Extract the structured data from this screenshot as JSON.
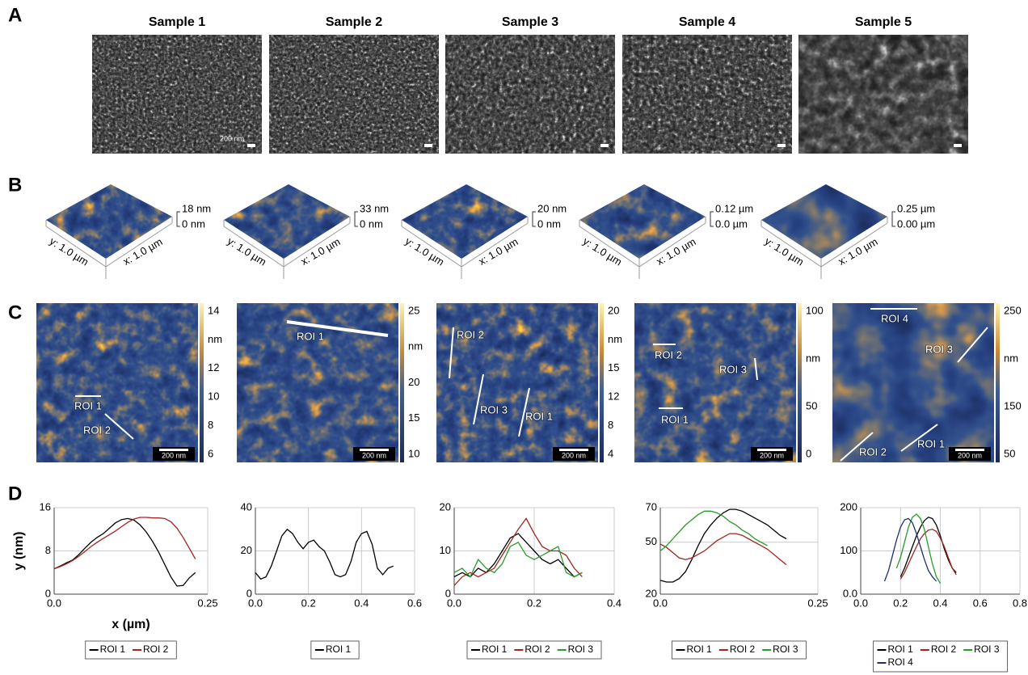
{
  "panel_labels": [
    "A",
    "B",
    "C",
    "D"
  ],
  "samples": [
    "Sample 1",
    "Sample 2",
    "Sample 3",
    "Sample 4",
    "Sample 5"
  ],
  "sem_scale_label": "200 nm",
  "afm_3d": [
    {
      "z_max": "18 nm",
      "z_min": "0 nm",
      "y_extent": "y: 1.0 µm",
      "x_extent": "x: 1.0 µm"
    },
    {
      "z_max": "33 nm",
      "z_min": "0 nm",
      "y_extent": "y: 1.0 µm",
      "x_extent": "x: 1.0 µm"
    },
    {
      "z_max": "20 nm",
      "z_min": "0 nm",
      "y_extent": "y: 1.0 µm",
      "x_extent": "x: 1.0 µm"
    },
    {
      "z_max": "0.12 µm",
      "z_min": "0.0 µm",
      "y_extent": "y: 1.0 µm",
      "x_extent": "x: 1.0 µm"
    },
    {
      "z_max": "0.25 µm",
      "z_min": "0.00 µm",
      "y_extent": "y: 1.0 µm",
      "x_extent": "x: 1.0 µm"
    }
  ],
  "afm_2d": [
    {
      "colorbar_ticks": [
        14,
        12,
        10,
        8,
        6
      ],
      "colorbar_unit": "nm",
      "rois": [
        "ROI 1",
        "ROI 2"
      ],
      "scale_label": "200 nm"
    },
    {
      "colorbar_ticks": [
        25,
        20,
        15,
        10
      ],
      "colorbar_unit": "nm",
      "rois": [
        "ROI 1"
      ],
      "scale_label": "200 nm"
    },
    {
      "colorbar_ticks": [
        20,
        15,
        12,
        8,
        4
      ],
      "colorbar_unit": "nm",
      "rois": [
        "ROI 2",
        "ROI 3",
        "ROI 1"
      ],
      "scale_label": "200 nm"
    },
    {
      "colorbar_ticks": [
        100,
        50,
        0
      ],
      "colorbar_unit": "nm",
      "rois": [
        "ROI 2",
        "ROI 3",
        "ROI 1"
      ],
      "scale_label": "200 nm"
    },
    {
      "colorbar_ticks": [
        250,
        150,
        50
      ],
      "colorbar_unit": "nm",
      "rois": [
        "ROI 4",
        "ROI 3",
        "ROI 2",
        "ROI 1"
      ],
      "scale_label": "200 nm"
    }
  ],
  "chart_data": [
    {
      "type": "line",
      "xlabel": "x (µm)",
      "ylabel": "y (nm)",
      "grid": true,
      "xlim": [
        0,
        0.25
      ],
      "xticks": [
        {
          "value": 0,
          "label": "0.0"
        },
        0.25
      ],
      "ylim": [
        0,
        16
      ],
      "yticks": [
        0,
        8,
        16
      ],
      "series": [
        {
          "name": "ROI 1",
          "color": "#000000",
          "x": [
            0,
            0.01,
            0.02,
            0.03,
            0.04,
            0.05,
            0.06,
            0.07,
            0.08,
            0.09,
            0.1,
            0.11,
            0.12,
            0.13,
            0.14,
            0.15,
            0.16,
            0.17,
            0.18,
            0.19,
            0.2,
            0.21,
            0.22,
            0.23
          ],
          "values": [
            4.7,
            5.2,
            5.8,
            6.3,
            7.3,
            8.5,
            9.6,
            10.5,
            11.2,
            12.2,
            13.2,
            13.8,
            14.0,
            13.7,
            12.8,
            11.5,
            9.8,
            7.8,
            5.5,
            3.2,
            1.5,
            1.6,
            3.0,
            4.0
          ]
        },
        {
          "name": "ROI 2",
          "color": "#a32420",
          "x": [
            0,
            0.01,
            0.02,
            0.03,
            0.04,
            0.05,
            0.06,
            0.07,
            0.08,
            0.09,
            0.1,
            0.11,
            0.12,
            0.13,
            0.14,
            0.15,
            0.16,
            0.17,
            0.18,
            0.19,
            0.2,
            0.21,
            0.22,
            0.23
          ],
          "values": [
            4.7,
            5.1,
            5.6,
            6.2,
            7.0,
            7.9,
            8.8,
            9.6,
            10.3,
            11.0,
            11.7,
            12.5,
            13.3,
            13.9,
            14.2,
            14.2,
            14.1,
            14.1,
            14.0,
            13.4,
            12.2,
            10.5,
            8.5,
            6.5
          ]
        }
      ]
    },
    {
      "type": "line",
      "grid": true,
      "xlim": [
        0,
        0.6
      ],
      "xticks": [
        {
          "value": 0,
          "label": "0.0"
        },
        0.2,
        0.4,
        0.6
      ],
      "ylim": [
        0,
        40
      ],
      "yticks": [
        0,
        20,
        40
      ],
      "series": [
        {
          "name": "ROI 1",
          "color": "#000000",
          "x": [
            0,
            0.02,
            0.04,
            0.06,
            0.08,
            0.1,
            0.12,
            0.14,
            0.16,
            0.18,
            0.2,
            0.22,
            0.24,
            0.26,
            0.28,
            0.3,
            0.32,
            0.34,
            0.36,
            0.38,
            0.4,
            0.42,
            0.44,
            0.46,
            0.48,
            0.5,
            0.52
          ],
          "values": [
            10,
            7,
            8,
            13,
            20,
            27,
            30,
            28,
            24,
            21,
            24,
            25,
            22,
            20,
            15,
            9,
            8,
            9,
            15,
            24,
            28,
            29,
            23,
            12,
            9,
            12,
            13
          ]
        }
      ]
    },
    {
      "type": "line",
      "grid": true,
      "xlim": [
        0,
        0.4
      ],
      "xticks": [
        {
          "value": 0,
          "label": "0.0"
        },
        0.2,
        0.4
      ],
      "ylim": [
        0,
        20
      ],
      "yticks": [
        0,
        10,
        20
      ],
      "series": [
        {
          "name": "ROI 1",
          "color": "#000000",
          "x": [
            0,
            0.02,
            0.04,
            0.06,
            0.08,
            0.1,
            0.12,
            0.14,
            0.16,
            0.18,
            0.2,
            0.22,
            0.24,
            0.26,
            0.28,
            0.3,
            0.32
          ],
          "values": [
            4,
            5,
            4,
            6,
            5,
            7,
            10,
            13,
            14,
            12,
            10,
            8,
            7,
            8,
            6,
            4,
            5
          ]
        },
        {
          "name": "ROI 2",
          "color": "#a32420",
          "x": [
            0,
            0.02,
            0.04,
            0.06,
            0.08,
            0.1,
            0.12,
            0.14,
            0.16,
            0.18,
            0.2,
            0.22,
            0.24,
            0.26,
            0.28,
            0.3,
            0.32
          ],
          "values": [
            2,
            4,
            5,
            4,
            5,
            6,
            9,
            12,
            15,
            17.5,
            14,
            11,
            10,
            10,
            9,
            6,
            4
          ]
        },
        {
          "name": "ROI 3",
          "color": "#2a9a2a",
          "x": [
            0,
            0.02,
            0.04,
            0.06,
            0.08,
            0.1,
            0.12,
            0.14,
            0.16,
            0.18,
            0.2,
            0.22,
            0.24,
            0.26,
            0.28,
            0.3,
            0.32
          ],
          "values": [
            5,
            6,
            4,
            8,
            6,
            5,
            7,
            11,
            12,
            9,
            8,
            9,
            10,
            11,
            5,
            4,
            5
          ]
        }
      ]
    },
    {
      "type": "line",
      "grid": true,
      "xlim": [
        0,
        0.25
      ],
      "xticks": [
        {
          "value": 0,
          "label": "0.0"
        },
        0.25
      ],
      "ylim": [
        20,
        70
      ],
      "yticks": [
        20,
        50,
        70
      ],
      "series": [
        {
          "name": "ROI 1",
          "color": "#000000",
          "x": [
            0,
            0.01,
            0.02,
            0.03,
            0.04,
            0.05,
            0.06,
            0.07,
            0.08,
            0.09,
            0.1,
            0.11,
            0.12,
            0.13,
            0.14,
            0.15,
            0.16,
            0.17,
            0.18,
            0.19,
            0.2
          ],
          "values": [
            28,
            27,
            27,
            29,
            33,
            40,
            48,
            55,
            60,
            64,
            67,
            69,
            69,
            68,
            66,
            64,
            62,
            60,
            57,
            54,
            52
          ]
        },
        {
          "name": "ROI 2",
          "color": "#a32420",
          "x": [
            0,
            0.01,
            0.02,
            0.03,
            0.04,
            0.05,
            0.06,
            0.07,
            0.08,
            0.09,
            0.1,
            0.11,
            0.12,
            0.13,
            0.14,
            0.15,
            0.16,
            0.17,
            0.18,
            0.19,
            0.2
          ],
          "values": [
            49,
            47,
            44,
            41,
            40,
            41,
            43,
            45,
            48,
            51,
            53,
            55,
            55,
            54,
            52,
            50,
            48,
            46,
            43,
            40,
            37
          ]
        },
        {
          "name": "ROI 3",
          "color": "#2a9a2a",
          "x": [
            0,
            0.01,
            0.02,
            0.03,
            0.04,
            0.05,
            0.06,
            0.07,
            0.08,
            0.09,
            0.1,
            0.11,
            0.12,
            0.13,
            0.14,
            0.15,
            0.16,
            0.17
          ],
          "values": [
            45,
            48,
            52,
            56,
            60,
            63,
            66,
            68,
            68,
            67,
            65,
            62,
            60,
            57,
            55,
            52,
            50,
            48
          ]
        }
      ]
    },
    {
      "type": "line",
      "grid": true,
      "xlim": [
        0,
        0.8
      ],
      "xticks": [
        {
          "value": 0,
          "label": "0.0"
        },
        0.2,
        0.4,
        0.6,
        0.8
      ],
      "ylim": [
        0,
        200
      ],
      "yticks": [
        {
          "value": 0,
          "label": "0.0"
        },
        100,
        200
      ],
      "series": [
        {
          "name": "ROI 1",
          "color": "#000000",
          "x": [
            0.2,
            0.22,
            0.24,
            0.26,
            0.28,
            0.3,
            0.32,
            0.34,
            0.36,
            0.38,
            0.4,
            0.42,
            0.44,
            0.46,
            0.48
          ],
          "values": [
            40,
            60,
            85,
            110,
            135,
            155,
            170,
            178,
            175,
            160,
            135,
            105,
            80,
            60,
            50
          ]
        },
        {
          "name": "ROI 2",
          "color": "#a32420",
          "x": [
            0.2,
            0.22,
            0.24,
            0.26,
            0.28,
            0.3,
            0.32,
            0.34,
            0.36,
            0.38,
            0.4,
            0.42,
            0.44,
            0.46,
            0.48
          ],
          "values": [
            35,
            50,
            70,
            90,
            110,
            128,
            140,
            148,
            150,
            145,
            130,
            110,
            85,
            60,
            45
          ]
        },
        {
          "name": "ROI 3",
          "color": "#2a9a2a",
          "x": [
            0.18,
            0.2,
            0.22,
            0.24,
            0.26,
            0.28,
            0.3,
            0.32,
            0.34,
            0.36,
            0.38,
            0.4
          ],
          "values": [
            60,
            85,
            120,
            155,
            178,
            185,
            175,
            150,
            110,
            70,
            40,
            25
          ]
        },
        {
          "name": "ROI 4",
          "color": "#1f2d6e",
          "x": [
            0.12,
            0.14,
            0.16,
            0.18,
            0.2,
            0.22,
            0.24,
            0.26,
            0.28,
            0.3,
            0.32,
            0.34,
            0.36,
            0.38
          ],
          "values": [
            30,
            55,
            90,
            125,
            155,
            172,
            175,
            165,
            140,
            110,
            80,
            55,
            40,
            30
          ]
        }
      ]
    }
  ]
}
